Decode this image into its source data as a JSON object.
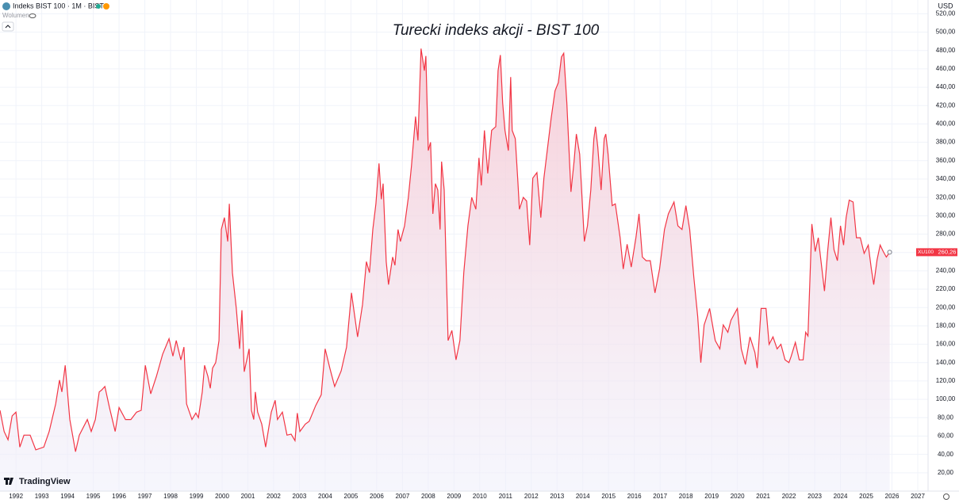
{
  "chart_data": {
    "type": "line",
    "symbol_title": "Indeks BIST 100 · 1M · BIST",
    "volume_label": "Wolumen",
    "title": "Turecki indeks akcji - BIST 100",
    "currency": "USD",
    "brand": "TradingView",
    "grid": true,
    "xlim": [
      1991.38,
      2027.4
    ],
    "ylim": [
      0,
      535
    ],
    "xticks": [
      1992,
      1993,
      1994,
      1995,
      1996,
      1997,
      1998,
      1999,
      2000,
      2001,
      2002,
      2003,
      2004,
      2005,
      2006,
      2007,
      2008,
      2009,
      2010,
      2011,
      2012,
      2013,
      2014,
      2015,
      2016,
      2017,
      2018,
      2019,
      2020,
      2021,
      2022,
      2023,
      2024,
      2025,
      2026,
      2027
    ],
    "yticks": [
      {
        "value": 20,
        "label": "20,00"
      },
      {
        "value": 40,
        "label": "40,00"
      },
      {
        "value": 60,
        "label": "60,00"
      },
      {
        "value": 80,
        "label": "80,00"
      },
      {
        "value": 100,
        "label": "100,00"
      },
      {
        "value": 120,
        "label": "120,00"
      },
      {
        "value": 140,
        "label": "140,00"
      },
      {
        "value": 160,
        "label": "160,00"
      },
      {
        "value": 180,
        "label": "180,00"
      },
      {
        "value": 200,
        "label": "200,00"
      },
      {
        "value": 220,
        "label": "220,00"
      },
      {
        "value": 240,
        "label": "240,00"
      },
      {
        "value": 260,
        "label": "260,00"
      },
      {
        "value": 280,
        "label": "280,00"
      },
      {
        "value": 300,
        "label": "300,00"
      },
      {
        "value": 320,
        "label": "320,00"
      },
      {
        "value": 340,
        "label": "340,00"
      },
      {
        "value": 360,
        "label": "360,00"
      },
      {
        "value": 380,
        "label": "380,00"
      },
      {
        "value": 400,
        "label": "400,00"
      },
      {
        "value": 420,
        "label": "420,00"
      },
      {
        "value": 440,
        "label": "440,00"
      },
      {
        "value": 460,
        "label": "460,00"
      },
      {
        "value": 480,
        "label": "480,00"
      },
      {
        "value": 500,
        "label": "500,00"
      },
      {
        "value": 520,
        "label": "520,00"
      }
    ],
    "last_price": {
      "value": 260.26,
      "label": "260,26"
    },
    "x": [
      1991.38,
      1991.54,
      1991.69,
      1991.85,
      1992.0,
      1992.15,
      1992.31,
      1992.55,
      1992.77,
      1993.08,
      1993.29,
      1993.54,
      1993.69,
      1993.78,
      1993.91,
      1994.09,
      1994.31,
      1994.46,
      1994.77,
      1994.92,
      1995.08,
      1995.23,
      1995.32,
      1995.45,
      1995.63,
      1995.85,
      1996.0,
      1996.25,
      1996.46,
      1996.68,
      1996.86,
      1997.02,
      1997.23,
      1997.45,
      1997.69,
      1997.94,
      1998.09,
      1998.22,
      1998.4,
      1998.52,
      1998.62,
      1998.83,
      1998.98,
      1999.08,
      1999.23,
      1999.32,
      1999.45,
      1999.54,
      1999.63,
      1999.75,
      1999.88,
      1999.97,
      2000.09,
      2000.22,
      2000.28,
      2000.4,
      2000.55,
      2000.68,
      2000.77,
      2000.86,
      2001.05,
      2001.14,
      2001.23,
      2001.29,
      2001.38,
      2001.54,
      2001.69,
      2001.91,
      2002.06,
      2002.15,
      2002.34,
      2002.52,
      2002.68,
      2002.83,
      2002.92,
      2003.02,
      2003.23,
      2003.38,
      2003.63,
      2003.85,
      2004.0,
      2004.18,
      2004.37,
      2004.62,
      2004.83,
      2005.02,
      2005.26,
      2005.45,
      2005.6,
      2005.72,
      2005.85,
      2005.97,
      2006.09,
      2006.18,
      2006.25,
      2006.37,
      2006.46,
      2006.62,
      2006.71,
      2006.83,
      2006.92,
      2007.08,
      2007.23,
      2007.35,
      2007.51,
      2007.6,
      2007.72,
      2007.85,
      2007.91,
      2008.0,
      2008.09,
      2008.18,
      2008.28,
      2008.37,
      2008.46,
      2008.52,
      2008.62,
      2008.77,
      2008.92,
      2009.08,
      2009.23,
      2009.38,
      2009.54,
      2009.69,
      2009.85,
      2009.97,
      2010.06,
      2010.18,
      2010.31,
      2010.46,
      2010.62,
      2010.71,
      2010.8,
      2010.89,
      2010.98,
      2011.11,
      2011.2,
      2011.26,
      2011.38,
      2011.48,
      2011.54,
      2011.69,
      2011.82,
      2011.94,
      2012.06,
      2012.22,
      2012.37,
      2012.49,
      2012.62,
      2012.77,
      2012.92,
      2013.05,
      2013.17,
      2013.26,
      2013.38,
      2013.54,
      2013.66,
      2013.75,
      2013.88,
      2014.06,
      2014.18,
      2014.31,
      2014.43,
      2014.49,
      2014.58,
      2014.71,
      2014.83,
      2014.89,
      2014.98,
      2015.14,
      2015.26,
      2015.45,
      2015.57,
      2015.72,
      2015.88,
      2016.06,
      2016.18,
      2016.31,
      2016.46,
      2016.62,
      2016.8,
      2016.98,
      2017.17,
      2017.32,
      2017.54,
      2017.69,
      2017.85,
      2018.0,
      2018.15,
      2018.31,
      2018.46,
      2018.58,
      2018.71,
      2018.92,
      2019.14,
      2019.32,
      2019.45,
      2019.63,
      2019.75,
      2020.0,
      2020.15,
      2020.31,
      2020.49,
      2020.68,
      2020.77,
      2020.92,
      2021.11,
      2021.23,
      2021.38,
      2021.54,
      2021.69,
      2021.85,
      2022.0,
      2022.09,
      2022.25,
      2022.4,
      2022.55,
      2022.65,
      2022.74,
      2022.89,
      2023.02,
      2023.14,
      2023.38,
      2023.51,
      2023.63,
      2023.75,
      2023.88,
      2024.0,
      2024.12,
      2024.22,
      2024.34,
      2024.49,
      2024.62,
      2024.77,
      2024.92,
      2025.08,
      2025.2,
      2025.29,
      2025.42,
      2025.54,
      2025.66,
      2025.78,
      2025.91
    ],
    "series": [
      {
        "name": "XU100",
        "color": "#f23645",
        "values": [
          88,
          65,
          56,
          82,
          86,
          48,
          61,
          61,
          45,
          48,
          65,
          95,
          121,
          108,
          137,
          78,
          43,
          61,
          78,
          65,
          78,
          108,
          110,
          114,
          91,
          65,
          91,
          78,
          78,
          86,
          88,
          137,
          106,
          125,
          149,
          166,
          147,
          164,
          143,
          157,
          95,
          78,
          85,
          80,
          108,
          137,
          125,
          112,
          134,
          140,
          164,
          285,
          298,
          272,
          313,
          238,
          199,
          155,
          197,
          130,
          155,
          88,
          78,
          108,
          86,
          73,
          48,
          86,
          99,
          78,
          86,
          61,
          62,
          55,
          85,
          65,
          73,
          76,
          93,
          105,
          155,
          134,
          114,
          131,
          157,
          216,
          168,
          203,
          250,
          238,
          285,
          313,
          357,
          318,
          335,
          250,
          225,
          255,
          246,
          285,
          272,
          289,
          320,
          354,
          408,
          382,
          482,
          458,
          474,
          371,
          380,
          302,
          335,
          328,
          285,
          359,
          328,
          164,
          175,
          143,
          164,
          238,
          289,
          320,
          307,
          363,
          333,
          393,
          346,
          393,
          397,
          458,
          475,
          423,
          393,
          371,
          451,
          393,
          384,
          337,
          307,
          320,
          316,
          268,
          341,
          347,
          298,
          341,
          371,
          406,
          436,
          445,
          473,
          477,
          423,
          326,
          359,
          389,
          367,
          272,
          289,
          328,
          384,
          397,
          375,
          328,
          384,
          389,
          367,
          311,
          313,
          276,
          242,
          269,
          244,
          276,
          302,
          255,
          251,
          251,
          216,
          242,
          285,
          302,
          315,
          289,
          285,
          311,
          285,
          233,
          190,
          140,
          181,
          199,
          164,
          155,
          181,
          173,
          186,
          199,
          155,
          138,
          168,
          151,
          134,
          199,
          199,
          160,
          168,
          155,
          160,
          143,
          140,
          147,
          162,
          143,
          143,
          173,
          169,
          291,
          261,
          276,
          218,
          263,
          298,
          263,
          251,
          289,
          268,
          298,
          317,
          315,
          276,
          276,
          259,
          268,
          242,
          225,
          252,
          268,
          261,
          255,
          260.26
        ]
      }
    ]
  }
}
